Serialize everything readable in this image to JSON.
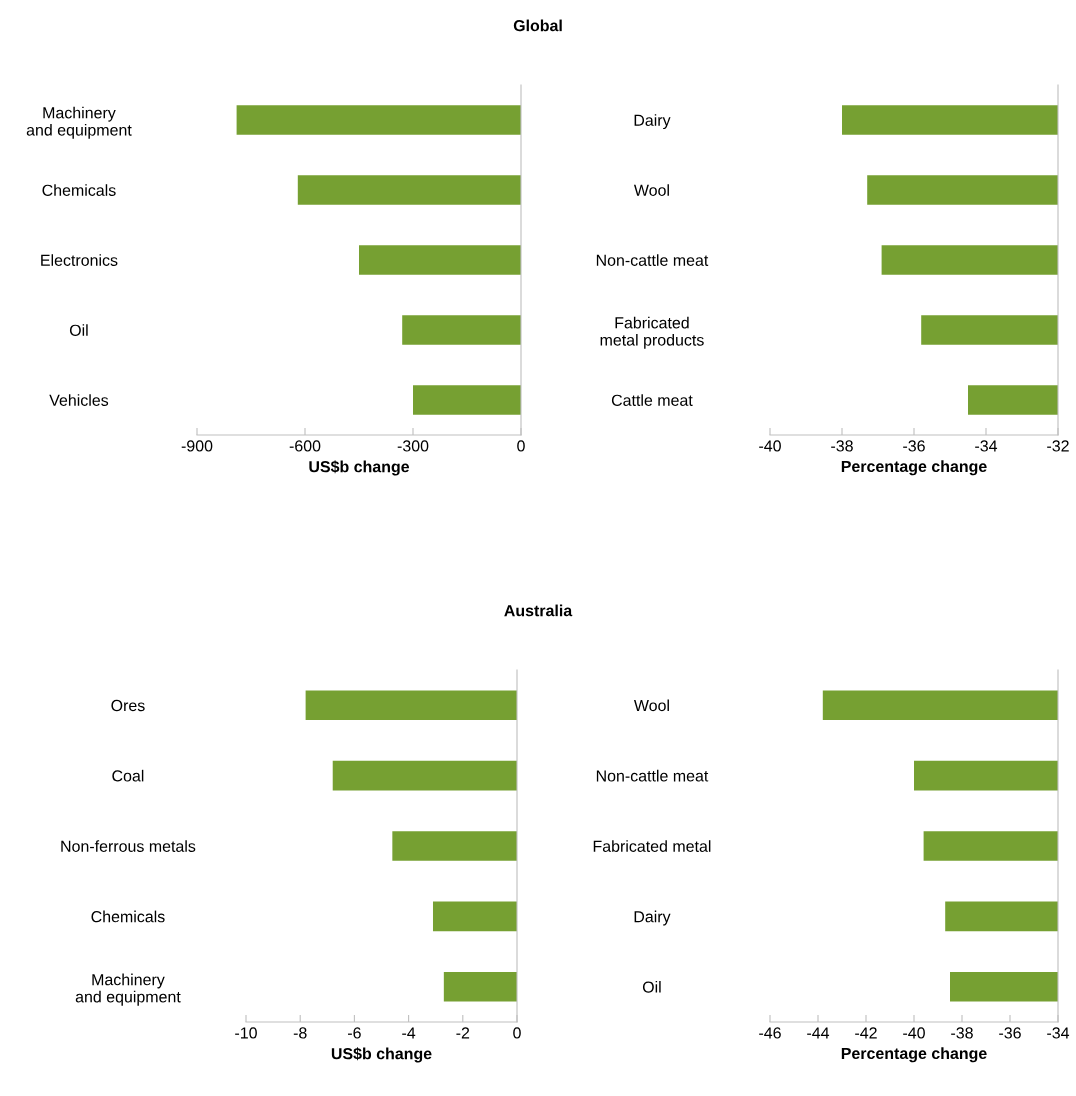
{
  "chart_data": [
    {
      "type": "bar",
      "orientation": "horizontal",
      "title": "Global",
      "xlabel": "US$b change",
      "categories": [
        "Machinery and equipment",
        "Chemicals",
        "Electronics",
        "Oil",
        "Vehicles"
      ],
      "values": [
        -790,
        -620,
        -450,
        -330,
        -300
      ],
      "color": "#76a032",
      "xlim": [
        -900,
        0
      ],
      "xticks": [
        -900,
        -600,
        -300,
        0
      ],
      "grid": false,
      "legend": false
    },
    {
      "type": "bar",
      "orientation": "horizontal",
      "xlabel": "Percentage change",
      "categories": [
        "Dairy",
        "Wool",
        "Non-cattle meat",
        "Fabricated metal products",
        "Cattle meat"
      ],
      "values": [
        -38.0,
        -37.3,
        -36.9,
        -35.8,
        -34.5
      ],
      "color": "#76a032",
      "xlim": [
        -40,
        -32
      ],
      "xticks": [
        -40,
        -38,
        -36,
        -34,
        -32
      ],
      "grid": false,
      "legend": false
    },
    {
      "type": "bar",
      "orientation": "horizontal",
      "title": "Australia",
      "xlabel": "US$b change",
      "categories": [
        "Ores",
        "Coal",
        "Non-ferrous metals",
        "Chemicals",
        "Machinery and equipment"
      ],
      "values": [
        -7.8,
        -6.8,
        -4.6,
        -3.1,
        -2.7
      ],
      "color": "#76a032",
      "xlim": [
        -10,
        0
      ],
      "xticks": [
        -10,
        -8,
        -6,
        -4,
        -2,
        0
      ],
      "grid": false,
      "legend": false
    },
    {
      "type": "bar",
      "orientation": "horizontal",
      "xlabel": "Percentage change",
      "categories": [
        "Wool",
        "Non-cattle meat",
        "Fabricated metal",
        "Dairy",
        "Oil"
      ],
      "values": [
        -43.8,
        -40.0,
        -39.6,
        -38.7,
        -38.5
      ],
      "color": "#76a032",
      "xlim": [
        -46,
        -34
      ],
      "xticks": [
        -46,
        -44,
        -42,
        -40,
        -38,
        -36,
        -34
      ],
      "grid": false,
      "legend": false
    }
  ]
}
